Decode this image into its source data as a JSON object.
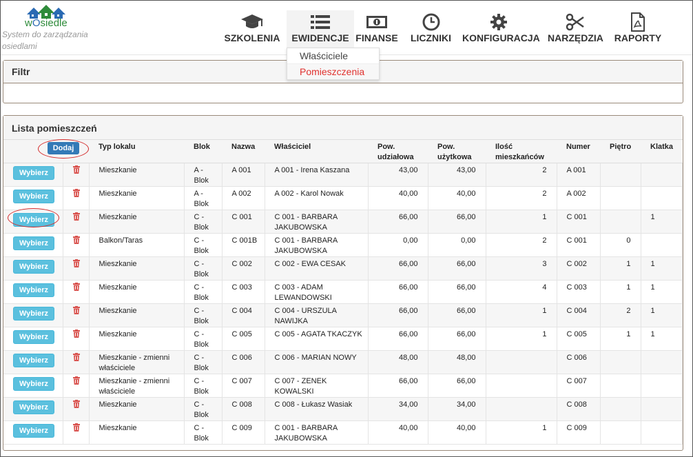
{
  "brand": {
    "logo_text_w": "w",
    "logo_text_o": "O",
    "logo_text_rest": "siedle",
    "tagline": "System do zarządzania osiedlami"
  },
  "nav": [
    {
      "label": "SZKOLENIA",
      "icon": "graduation-cap-icon"
    },
    {
      "label": "EWIDENCJE",
      "icon": "list-icon"
    },
    {
      "label": "FINANSE",
      "icon": "money-icon"
    },
    {
      "label": "LICZNIKI",
      "icon": "clock-icon"
    },
    {
      "label": "KONFIGURACJA",
      "icon": "gear-icon"
    },
    {
      "label": "NARZĘDZIA",
      "icon": "scissors-icon"
    },
    {
      "label": "RAPORTY",
      "icon": "pdf-file-icon"
    }
  ],
  "dropdown": {
    "items": [
      "Właściciele",
      "Pomieszczenia"
    ],
    "selected": "Pomieszczenia"
  },
  "filter": {
    "title": "Filtr"
  },
  "list": {
    "title": "Lista pomieszczeń",
    "add_label": "Dodaj",
    "select_label": "Wybierz",
    "columns": [
      "Typ lokalu",
      "Blok",
      "Nazwa",
      "Właściciel",
      "Pow. udziałowa",
      "Pow. użytkowa",
      "Ilość mieszkańców",
      "Numer",
      "Piętro",
      "Klatka"
    ],
    "rows": [
      {
        "typ": "Mieszkanie",
        "blok": "A - Blok",
        "nazwa": "A 001",
        "wlasciciel": "A 001 - Irena Kaszana",
        "pow_udz": "43,00",
        "pow_uz": "43,00",
        "ilosc": "2",
        "numer": "A 001",
        "pietro": "",
        "klatka": ""
      },
      {
        "typ": "Mieszkanie",
        "blok": "A - Blok",
        "nazwa": "A 002",
        "wlasciciel": "A 002 - Karol Nowak",
        "pow_udz": "40,00",
        "pow_uz": "40,00",
        "ilosc": "2",
        "numer": "A 002",
        "pietro": "",
        "klatka": ""
      },
      {
        "typ": "Mieszkanie",
        "blok": "C - Blok",
        "nazwa": "C 001",
        "wlasciciel": "C 001 - BARBARA JAKUBOWSKA",
        "pow_udz": "66,00",
        "pow_uz": "66,00",
        "ilosc": "1",
        "numer": "C 001",
        "pietro": "",
        "klatka": "1"
      },
      {
        "typ": "Balkon/Taras",
        "blok": "C - Blok",
        "nazwa": "C 001B",
        "wlasciciel": "C 001 - BARBARA JAKUBOWSKA",
        "pow_udz": "0,00",
        "pow_uz": "0,00",
        "ilosc": "2",
        "numer": "C 001",
        "pietro": "0",
        "klatka": ""
      },
      {
        "typ": "Mieszkanie",
        "blok": "C - Blok",
        "nazwa": "C 002",
        "wlasciciel": "C 002 - EWA CESAK",
        "pow_udz": "66,00",
        "pow_uz": "66,00",
        "ilosc": "3",
        "numer": "C 002",
        "pietro": "1",
        "klatka": "1"
      },
      {
        "typ": "Mieszkanie",
        "blok": "C - Blok",
        "nazwa": "C 003",
        "wlasciciel": "C 003 - ADAM LEWANDOWSKI",
        "pow_udz": "66,00",
        "pow_uz": "66,00",
        "ilosc": "4",
        "numer": "C 003",
        "pietro": "1",
        "klatka": "1"
      },
      {
        "typ": "Mieszkanie",
        "blok": "C - Blok",
        "nazwa": "C 004",
        "wlasciciel": "C 004 - URSZULA NAWIJKA",
        "pow_udz": "66,00",
        "pow_uz": "66,00",
        "ilosc": "1",
        "numer": "C 004",
        "pietro": "2",
        "klatka": "1"
      },
      {
        "typ": "Mieszkanie",
        "blok": "C - Blok",
        "nazwa": "C 005",
        "wlasciciel": "C 005 - AGATA TKACZYK",
        "pow_udz": "66,00",
        "pow_uz": "66,00",
        "ilosc": "1",
        "numer": "C 005",
        "pietro": "1",
        "klatka": "1"
      },
      {
        "typ": "Mieszkanie - zmienni właściciele",
        "blok": "C - Blok",
        "nazwa": "C 006",
        "wlasciciel": "C 006 - MARIAN NOWY",
        "pow_udz": "48,00",
        "pow_uz": "48,00",
        "ilosc": "",
        "numer": "C 006",
        "pietro": "",
        "klatka": ""
      },
      {
        "typ": "Mieszkanie - zmienni właściciele",
        "blok": "C - Blok",
        "nazwa": "C 007",
        "wlasciciel": "C 007 - ZENEK KOWALSKI",
        "pow_udz": "66,00",
        "pow_uz": "66,00",
        "ilosc": "",
        "numer": "C 007",
        "pietro": "",
        "klatka": ""
      },
      {
        "typ": "Mieszkanie",
        "blok": "C - Blok",
        "nazwa": "C 008",
        "wlasciciel": "C 008 - Łukasz Wasiak",
        "pow_udz": "34,00",
        "pow_uz": "34,00",
        "ilosc": "",
        "numer": "C 008",
        "pietro": "",
        "klatka": ""
      },
      {
        "typ": "Mieszkanie",
        "blok": "C - Blok",
        "nazwa": "C 009",
        "wlasciciel": "C 001 - BARBARA JAKUBOWSKA",
        "pow_udz": "40,00",
        "pow_uz": "40,00",
        "ilosc": "1",
        "numer": "C 009",
        "pietro": "",
        "klatka": ""
      }
    ]
  },
  "colors": {
    "accent_red": "#e0312e",
    "info_button": "#5bc0de",
    "primary_button": "#337ab7",
    "trash": "#d9534f",
    "annotation": "#d42a2a"
  }
}
